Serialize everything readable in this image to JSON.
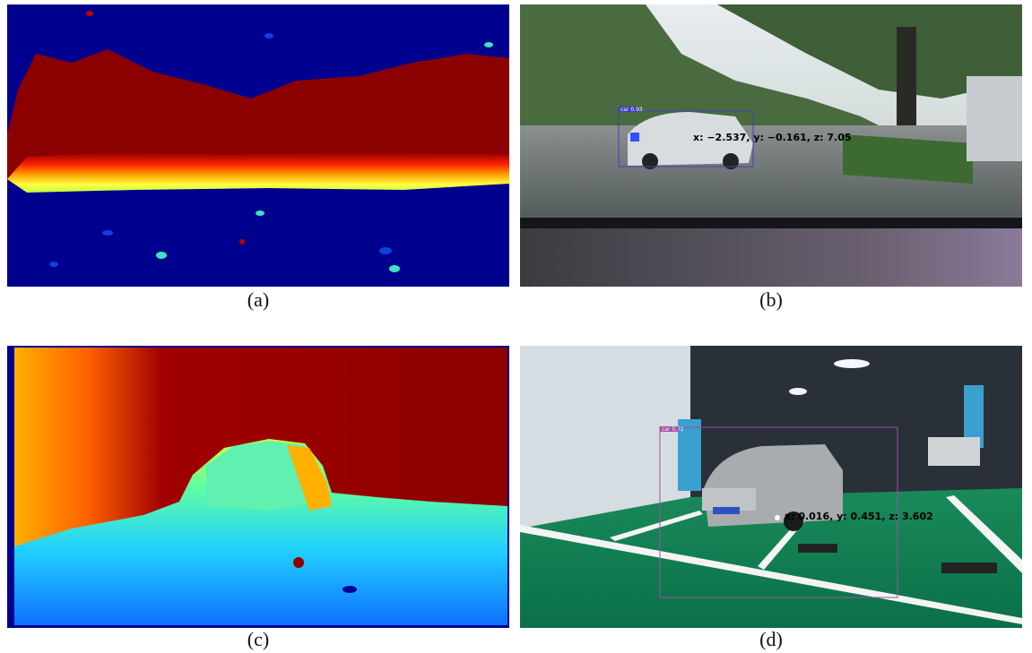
{
  "panels": [
    {
      "caption": "(a)"
    },
    {
      "caption": "(b)",
      "detection": {
        "label": "car 0.93",
        "coords": "x: −2.537, y: −0.161, z: 7.05"
      }
    },
    {
      "caption": "(c)"
    },
    {
      "caption": "(d)",
      "detection": {
        "label": "car 0.71",
        "coords": "x: 0.016, y: 0.451, z: 3.602"
      }
    }
  ]
}
